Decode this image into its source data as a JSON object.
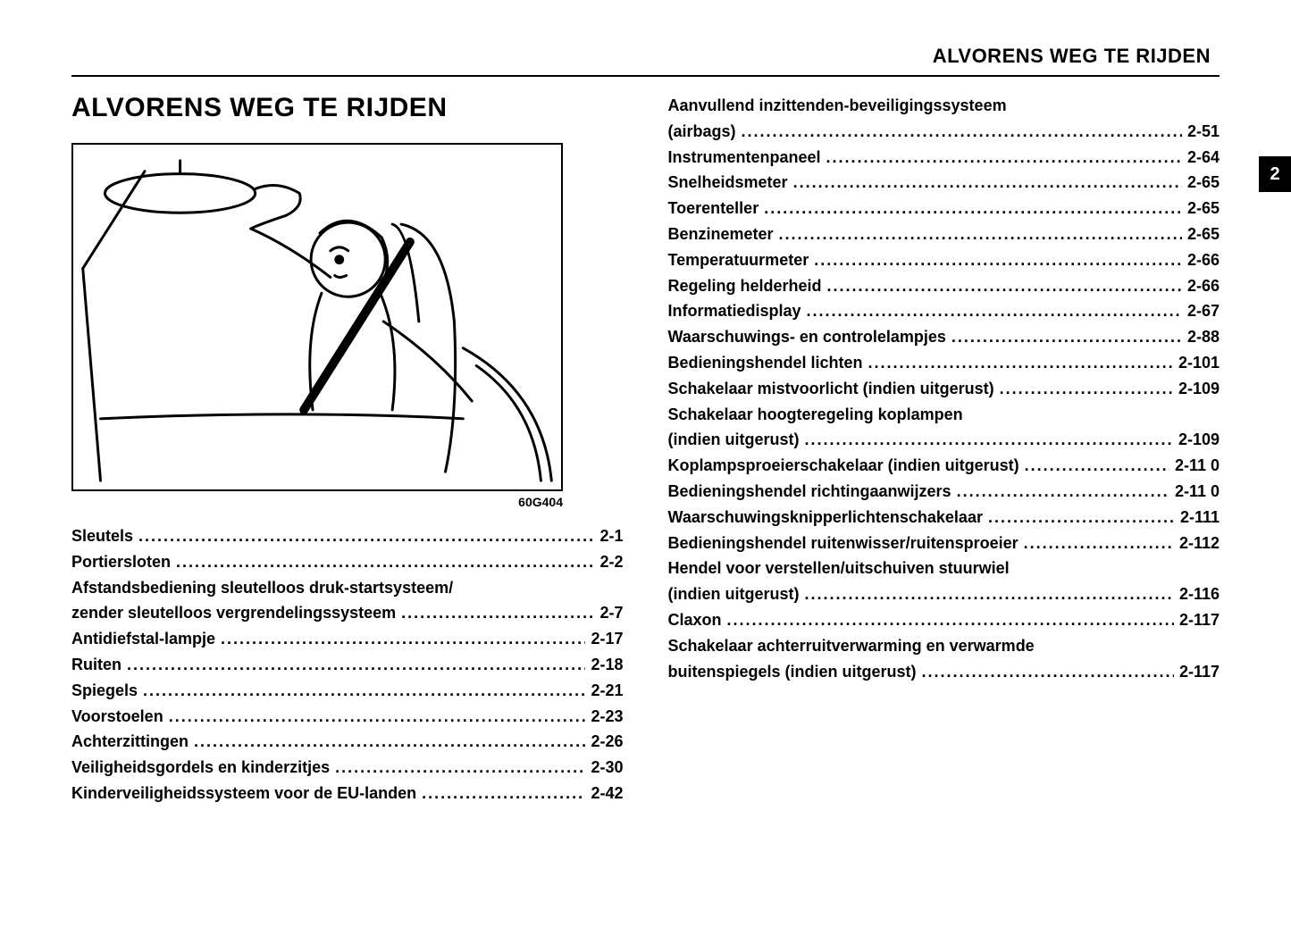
{
  "running_header": "ALVORENS WEG TE RIJDEN",
  "page_tab": "2",
  "section_title": "ALVORENS WEG TE RIJDEN",
  "illustration_caption": "60G404",
  "left_toc": [
    {
      "label": "Sleutels",
      "page": "2-1"
    },
    {
      "label": "Portiersloten",
      "page": "2-2"
    },
    {
      "label": "Afstandsbediening sleutelloos druk-startsysteem/",
      "cont": true
    },
    {
      "label": "zender sleutelloos vergrendelingssysteem",
      "page": "2-7"
    },
    {
      "label": "Antidiefstal-lampje",
      "page": "2-17"
    },
    {
      "label": "Ruiten",
      "page": "2-18"
    },
    {
      "label": "Spiegels",
      "page": "2-21"
    },
    {
      "label": "Voorstoelen",
      "page": "2-23"
    },
    {
      "label": "Achterzittingen",
      "page": "2-26"
    },
    {
      "label": "Veiligheidsgordels en kinderzitjes",
      "page": "2-30"
    },
    {
      "label": "Kinderveiligheidssysteem voor de EU-landen",
      "page": "2-42"
    }
  ],
  "right_toc": [
    {
      "label": "Aanvullend inzittenden-beveiligingssysteem",
      "cont": true
    },
    {
      "label": "(airbags)",
      "page": "2-51"
    },
    {
      "label": "Instrumentenpaneel",
      "page": "2-64"
    },
    {
      "label": "Snelheidsmeter",
      "page": "2-65"
    },
    {
      "label": "Toerenteller",
      "page": "2-65"
    },
    {
      "label": "Benzinemeter",
      "page": "2-65"
    },
    {
      "label": "Temperatuurmeter",
      "page": "2-66"
    },
    {
      "label": "Regeling helderheid",
      "page": "2-66"
    },
    {
      "label": "Informatiedisplay",
      "page": "2-67"
    },
    {
      "label": "Waarschuwings- en controlelampjes",
      "page": "2-88"
    },
    {
      "label": "Bedieningshendel lichten",
      "page": "2-101"
    },
    {
      "label": "Schakelaar mistvoorlicht (indien uitgerust)",
      "page": "2-109"
    },
    {
      "label": "Schakelaar hoogteregeling koplampen",
      "cont": true
    },
    {
      "label": "(indien uitgerust)",
      "page": "2-109"
    },
    {
      "label": "Koplampsproeierschakelaar (indien uitgerust)",
      "page": "2-11 0"
    },
    {
      "label": "Bedieningshendel richtingaanwijzers",
      "page": "2-11 0"
    },
    {
      "label": "Waarschuwingsknipperlichtenschakelaar",
      "page": "2-111"
    },
    {
      "label": "Bedieningshendel ruitenwisser/ruitensproeier",
      "page": "2-112"
    },
    {
      "label": "Hendel voor verstellen/uitschuiven stuurwiel",
      "cont": true
    },
    {
      "label": "(indien uitgerust)",
      "page": "2-116"
    },
    {
      "label": "Claxon",
      "page": "2-117"
    },
    {
      "label": "Schakelaar achterruitverwarming en verwarmde",
      "cont": true
    },
    {
      "label": "buitenspiegels (indien uitgerust)",
      "page": "2-117"
    }
  ]
}
